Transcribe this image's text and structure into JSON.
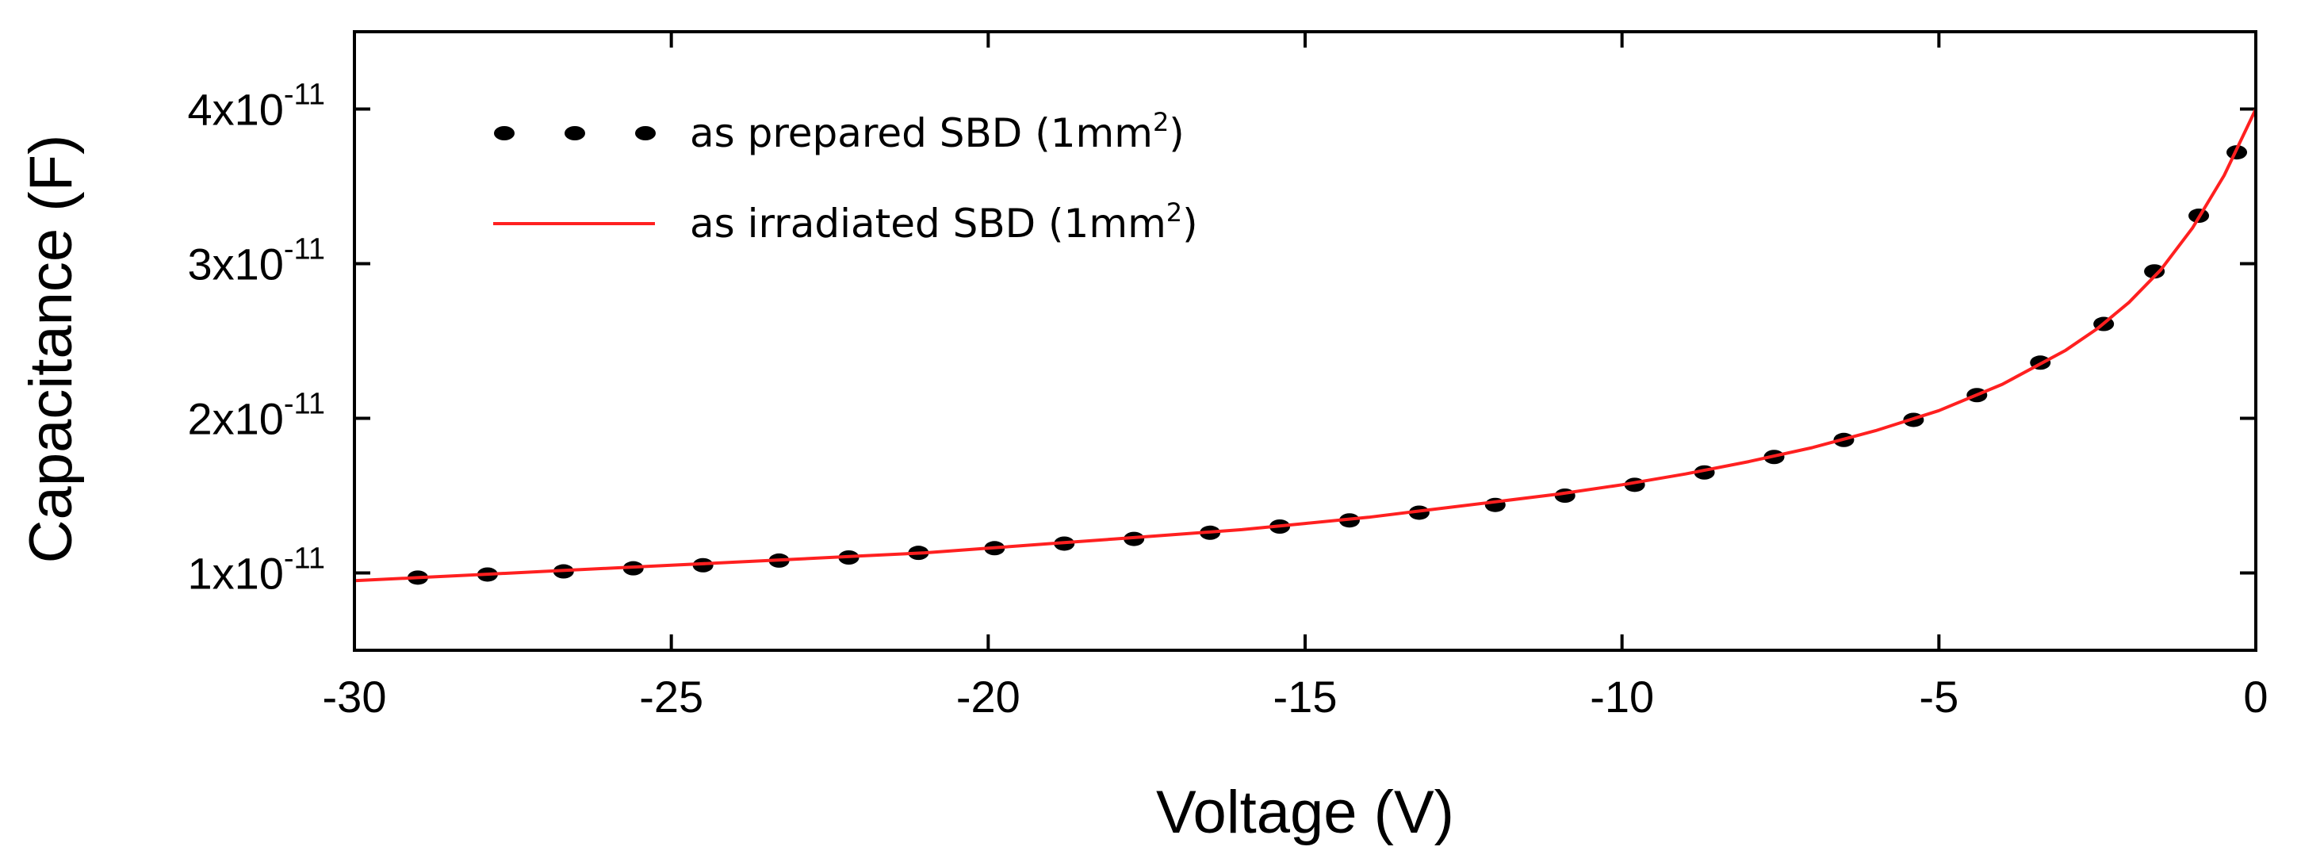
{
  "chart_data": {
    "type": "line",
    "xlabel": "Voltage (V)",
    "ylabel": "Capacitance (F)",
    "xlim": [
      -30,
      0
    ],
    "ylim": [
      5e-12,
      4.5e-11
    ],
    "xticks": [
      -30,
      -25,
      -20,
      -15,
      -10,
      -5,
      0
    ],
    "xtick_labels": [
      "-30",
      "-25",
      "-20",
      "-15",
      "-10",
      "-5",
      "0"
    ],
    "yticks": [
      1e-11,
      2e-11,
      3e-11,
      4e-11
    ],
    "ytick_labels": [
      {
        "mantissa": "1x10",
        "exponent": "-11"
      },
      {
        "mantissa": "2x10",
        "exponent": "-11"
      },
      {
        "mantissa": "3x10",
        "exponent": "-11"
      },
      {
        "mantissa": "4x10",
        "exponent": "-11"
      }
    ],
    "legend_position": "top-left",
    "series": [
      {
        "name": "as prepared SBD (1mm",
        "name_superscript": "2",
        "name_suffix": ")",
        "style": "dotted",
        "color": "#000000",
        "x": [
          -29.0,
          -27.9,
          -26.7,
          -25.6,
          -24.5,
          -23.3,
          -22.2,
          -21.1,
          -19.9,
          -18.8,
          -17.7,
          -16.5,
          -15.4,
          -14.3,
          -13.2,
          -12.0,
          -10.9,
          -9.8,
          -8.7,
          -7.6,
          -6.5,
          -5.4,
          -4.4,
          -3.4,
          -2.4,
          -1.6,
          -0.9,
          -0.3
        ],
        "y": [
          9.7e-12,
          9.9e-12,
          1.01e-11,
          1.03e-11,
          1.05e-11,
          1.08e-11,
          1.1e-11,
          1.13e-11,
          1.16e-11,
          1.19e-11,
          1.22e-11,
          1.26e-11,
          1.3e-11,
          1.34e-11,
          1.39e-11,
          1.44e-11,
          1.5e-11,
          1.57e-11,
          1.65e-11,
          1.75e-11,
          1.86e-11,
          1.99e-11,
          2.15e-11,
          2.36e-11,
          2.61e-11,
          2.95e-11,
          3.31e-11,
          3.72e-11
        ]
      },
      {
        "name": "as irradiated SBD (1mm",
        "name_superscript": "2",
        "name_suffix": ")",
        "style": "solid",
        "color": "#ff2020",
        "x": [
          -30,
          -29,
          -28,
          -27,
          -26,
          -25,
          -24,
          -23,
          -22,
          -21,
          -20,
          -19,
          -18,
          -17,
          -16,
          -15,
          -14,
          -13,
          -12,
          -11,
          -10,
          -9,
          -8,
          -7,
          -6,
          -5,
          -4,
          -3,
          -2.5,
          -2,
          -1.5,
          -1,
          -0.5,
          0
        ],
        "y": [
          9.5e-12,
          9.7e-12,
          9.9e-12,
          1.01e-11,
          1.03e-11,
          1.05e-11,
          1.07e-11,
          1.09e-11,
          1.11e-11,
          1.13e-11,
          1.16e-11,
          1.19e-11,
          1.22e-11,
          1.25e-11,
          1.28e-11,
          1.32e-11,
          1.36e-11,
          1.41e-11,
          1.46e-11,
          1.51e-11,
          1.57e-11,
          1.64e-11,
          1.72e-11,
          1.81e-11,
          1.92e-11,
          2.05e-11,
          2.22e-11,
          2.44e-11,
          2.58e-11,
          2.75e-11,
          2.96e-11,
          3.23e-11,
          3.57e-11,
          4e-11
        ]
      }
    ]
  }
}
